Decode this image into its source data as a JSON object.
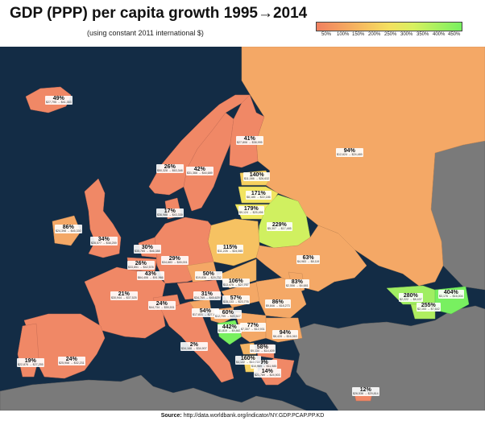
{
  "title": "GDP (PPP) per capita growth 1995→2014",
  "subtitle": "(using constant 2011 international $)",
  "legend": {
    "gradient": [
      "#f08060",
      "#f4a060",
      "#f6c060",
      "#f4e060",
      "#d8f060",
      "#a8f060",
      "#78f060"
    ],
    "ticks": [
      "50%",
      "100%",
      "150%",
      "200%",
      "250%",
      "300%",
      "350%",
      "400%",
      "450%"
    ]
  },
  "source_label": "Source:",
  "source_url": "http://data.worldbank.org/indicator/NY.GDP.PCAP.PP.KD",
  "colors": {
    "sea": "#132c45",
    "nodata": "#7a7a7a",
    "low": "#f08866",
    "mid": "#f4a866",
    "high": "#7de866"
  },
  "regions": [
    {
      "id": "iceland",
      "pct": "49%",
      "range": "$27,795 → $41,353"
    },
    {
      "id": "norway",
      "pct": "26%",
      "range": "$50,328 → $63,348"
    },
    {
      "id": "sweden",
      "pct": "42%",
      "range": "$31,366 → $44,689"
    },
    {
      "id": "finland",
      "pct": "41%",
      "range": "$27,806 → $38,995"
    },
    {
      "id": "russia",
      "pct": "94%",
      "range": "$12,624 → $24,489"
    },
    {
      "id": "estonia",
      "pct": "140%",
      "range": "$11,086 → $26,632"
    },
    {
      "id": "latvia",
      "pct": "171%",
      "range": "$8,185 → $22,186"
    },
    {
      "id": "lithuania",
      "pct": "179%",
      "range": "$9,124 → $25,456"
    },
    {
      "id": "belarus",
      "pct": "229%",
      "range": "$5,307 → $17,485"
    },
    {
      "id": "denmark",
      "pct": "17%",
      "range": "$36,988 → $43,339"
    },
    {
      "id": "ireland",
      "pct": "86%",
      "range": "$24,398 → $45,330"
    },
    {
      "id": "uk",
      "pct": "34%",
      "range": "$28,577 → $38,259"
    },
    {
      "id": "netherlands",
      "pct": "30%",
      "range": "$35,765 → $46,388"
    },
    {
      "id": "belgium",
      "pct": "26%",
      "range": "$33,851 → $42,578"
    },
    {
      "id": "germany",
      "pct": "29%",
      "range": "$34,883 → $45,001"
    },
    {
      "id": "poland",
      "pct": "115%",
      "range": "$11,226 → $24,065"
    },
    {
      "id": "luxembourg",
      "pct": "43%",
      "range": "$64,406 → $91,966"
    },
    {
      "id": "czechia",
      "pct": "50%",
      "range": "$19,836 → $29,732"
    },
    {
      "id": "slovakia",
      "pct": "106%",
      "range": "$13,476 → $27,767"
    },
    {
      "id": "ukraine",
      "pct": "63%",
      "range": "$4,983 → $8,119"
    },
    {
      "id": "france",
      "pct": "21%",
      "range": "$30,944 → $37,525"
    },
    {
      "id": "switzerland",
      "pct": "24%",
      "range": "$44,734 → $55,531"
    },
    {
      "id": "austria",
      "pct": "31%",
      "range": "$34,769 → $45,629"
    },
    {
      "id": "hungary",
      "pct": "57%",
      "range": "$15,133 → $23,776"
    },
    {
      "id": "moldova",
      "pct": "83%",
      "range": "$2,556 → $4,681"
    },
    {
      "id": "romania",
      "pct": "86%",
      "range": "$9,846 → $18,273"
    },
    {
      "id": "slovenia",
      "pct": "54%",
      "range": "$17,831 → $27,455"
    },
    {
      "id": "croatia",
      "pct": "60%",
      "range": "$12,799 → $20,517"
    },
    {
      "id": "bosnia",
      "pct": "442%",
      "range": "$1,819 → $9,863"
    },
    {
      "id": "serbia",
      "pct": "77%",
      "range": "$7,307 → $12,931"
    },
    {
      "id": "bulgaria",
      "pct": "94%",
      "range": "$8,428 → $16,363"
    },
    {
      "id": "montenegro",
      "pct": "58%",
      "range": "$9,130 → $14,409"
    },
    {
      "id": "macedonia",
      "pct": "9%",
      "range": "$10,969 → $11,985"
    },
    {
      "id": "albania",
      "pct": "160%",
      "range": "$4,122 → $10,722"
    },
    {
      "id": "greece",
      "pct": "14%",
      "range": "$21,789 → $24,903"
    },
    {
      "id": "italy",
      "pct": "2%",
      "range": "$34,168 → $34,907"
    },
    {
      "id": "spain",
      "pct": "24%",
      "range": "$25,958 → $32,231"
    },
    {
      "id": "portugal",
      "pct": "19%",
      "range": "$22,876 → $27,255"
    },
    {
      "id": "cyprus",
      "pct": "12%",
      "range": "$26,536 → $29,814"
    },
    {
      "id": "georgia",
      "pct": "280%",
      "range": "$2,222 → $8,437"
    },
    {
      "id": "azerbaijan",
      "pct": "404%",
      "range": "$3,176 → $16,004"
    },
    {
      "id": "armenia",
      "pct": "255%",
      "range": "$2,153 → $7,642"
    }
  ]
}
